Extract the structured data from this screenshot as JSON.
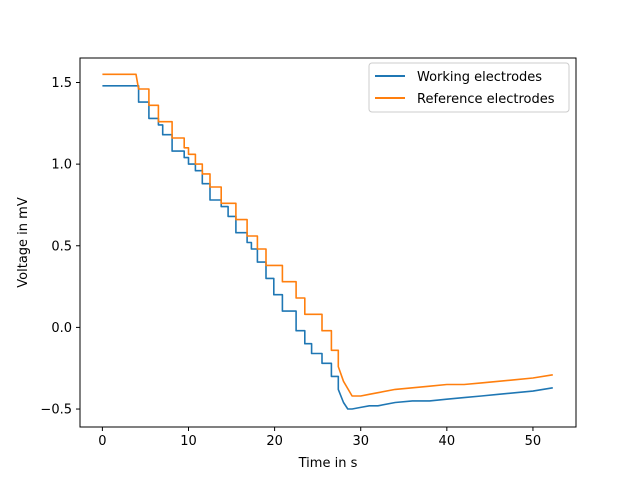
{
  "chart_data": {
    "type": "line",
    "title": "",
    "xlabel": "Time in s",
    "ylabel": "Voltage in mV",
    "xlim": [
      -2.6,
      55.0
    ],
    "ylim": [
      -0.61,
      1.65
    ],
    "xticks": [
      0,
      10,
      20,
      30,
      40,
      50
    ],
    "yticks": [
      -0.5,
      0.0,
      0.5,
      1.0,
      1.5
    ],
    "xtick_labels": [
      "0",
      "10",
      "20",
      "30",
      "40",
      "50"
    ],
    "ytick_labels": [
      "−0.5",
      "0.0",
      "0.5",
      "1.0",
      "1.5"
    ],
    "grid": false,
    "legend": "top-right",
    "series": [
      {
        "name": "Working electrodes",
        "color": "#1f77b4",
        "x": [
          0,
          4.2,
          4.2,
          5.4,
          5.4,
          6.5,
          6.5,
          7.0,
          7.0,
          8.1,
          8.1,
          9.5,
          9.5,
          10.0,
          10.0,
          10.8,
          10.8,
          11.6,
          11.6,
          12.5,
          12.5,
          13.8,
          13.8,
          14.6,
          14.6,
          15.5,
          15.5,
          16.8,
          16.8,
          17.3,
          17.3,
          18.0,
          18.0,
          19.0,
          19.0,
          19.9,
          19.9,
          20.9,
          20.9,
          22.5,
          22.5,
          23.5,
          23.5,
          24.3,
          24.3,
          25.5,
          25.5,
          26.6,
          26.6,
          27.4,
          27.4,
          28.0,
          28.5,
          29.0,
          30.0,
          31.0,
          32.0,
          34.0,
          36.0,
          38.0,
          40.0,
          42.0,
          44.0,
          46.0,
          48.0,
          50.0,
          52.3
        ],
        "y": [
          1.48,
          1.48,
          1.38,
          1.38,
          1.28,
          1.28,
          1.24,
          1.24,
          1.18,
          1.18,
          1.08,
          1.08,
          1.04,
          1.04,
          1.0,
          1.0,
          0.96,
          0.96,
          0.88,
          0.88,
          0.78,
          0.78,
          0.74,
          0.74,
          0.68,
          0.68,
          0.58,
          0.58,
          0.52,
          0.52,
          0.48,
          0.48,
          0.4,
          0.4,
          0.3,
          0.3,
          0.2,
          0.2,
          0.1,
          0.1,
          -0.02,
          -0.02,
          -0.1,
          -0.1,
          -0.16,
          -0.16,
          -0.22,
          -0.22,
          -0.3,
          -0.3,
          -0.38,
          -0.46,
          -0.5,
          -0.5,
          -0.49,
          -0.48,
          -0.48,
          -0.46,
          -0.45,
          -0.45,
          -0.44,
          -0.43,
          -0.42,
          -0.41,
          -0.4,
          -0.39,
          -0.37
        ]
      },
      {
        "name": "Reference electrodes",
        "color": "#ff7f0e",
        "x": [
          0,
          3.9,
          4.2,
          4.2,
          5.4,
          5.4,
          6.5,
          6.5,
          8.1,
          8.1,
          9.5,
          9.5,
          10.0,
          10.0,
          10.8,
          10.8,
          11.6,
          11.6,
          12.5,
          12.5,
          13.8,
          13.8,
          15.5,
          15.5,
          16.8,
          16.8,
          18.0,
          18.0,
          19.0,
          19.0,
          20.9,
          20.9,
          22.5,
          22.5,
          23.5,
          23.5,
          25.5,
          25.5,
          26.6,
          26.6,
          27.4,
          27.4,
          28.0,
          29.0,
          30.0,
          31.0,
          32.0,
          34.0,
          36.0,
          38.0,
          40.0,
          42.0,
          44.0,
          46.0,
          48.0,
          50.0,
          52.3
        ],
        "y": [
          1.55,
          1.55,
          1.46,
          1.46,
          1.46,
          1.36,
          1.36,
          1.26,
          1.26,
          1.16,
          1.16,
          1.1,
          1.1,
          1.06,
          1.06,
          1.0,
          1.0,
          0.94,
          0.94,
          0.86,
          0.86,
          0.76,
          0.76,
          0.66,
          0.66,
          0.56,
          0.56,
          0.48,
          0.48,
          0.38,
          0.38,
          0.28,
          0.28,
          0.18,
          0.18,
          0.08,
          0.08,
          -0.02,
          -0.02,
          -0.14,
          -0.14,
          -0.24,
          -0.33,
          -0.42,
          -0.42,
          -0.41,
          -0.4,
          -0.38,
          -0.37,
          -0.36,
          -0.35,
          -0.35,
          -0.34,
          -0.33,
          -0.32,
          -0.31,
          -0.29
        ]
      }
    ]
  }
}
